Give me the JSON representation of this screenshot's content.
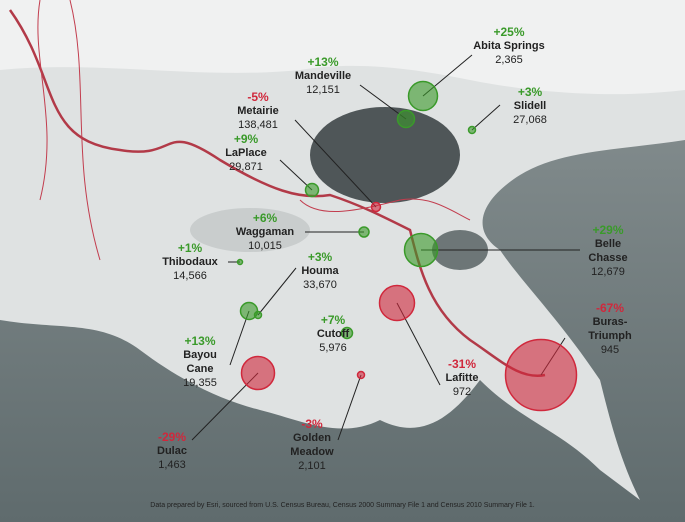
{
  "map": {
    "positive_color": "#3a9a2a",
    "negative_color": "#d0283c",
    "places": [
      {
        "name": "Abita Springs",
        "change": 25,
        "change_label": "+25%",
        "population": "2,365"
      },
      {
        "name": "Mandeville",
        "change": 13,
        "change_label": "+13%",
        "population": "12,151"
      },
      {
        "name": "Slidell",
        "change": 3,
        "change_label": "+3%",
        "population": "27,068"
      },
      {
        "name": "Metairie",
        "change": -5,
        "change_label": "-5%",
        "population": "138,481"
      },
      {
        "name": "LaPlace",
        "change": 9,
        "change_label": "+9%",
        "population": "29,871"
      },
      {
        "name": "Waggaman",
        "change": 6,
        "change_label": "+6%",
        "population": "10,015"
      },
      {
        "name": "Thibodaux",
        "change": 1,
        "change_label": "+1%",
        "population": "14,566"
      },
      {
        "name": "Houma",
        "change": 3,
        "change_label": "+3%",
        "population": "33,670"
      },
      {
        "name": "Bayou Cane",
        "change": 13,
        "change_label": "+13%",
        "population": "19,355"
      },
      {
        "name": "Cutoff",
        "change": 7,
        "change_label": "+7%",
        "population": "5,976"
      },
      {
        "name": "Golden Meadow",
        "change": -3,
        "change_label": "-3%",
        "population": "2,101"
      },
      {
        "name": "Lafitte",
        "change": -31,
        "change_label": "-31%",
        "population": "972"
      },
      {
        "name": "Belle Chasse",
        "change": 29,
        "change_label": "+29%",
        "population": "12,679"
      },
      {
        "name": "Buras-Triumph",
        "change": -67,
        "change_label": "-67%",
        "population": "945"
      },
      {
        "name": "Dulac",
        "change": -29,
        "change_label": "-29%",
        "population": "1,463"
      }
    ],
    "footer": "Data prepared by Esri, sourced from U.S. Census Bureau, Census 2000 Summary File 1 and Census 2010 Summary File 1."
  }
}
